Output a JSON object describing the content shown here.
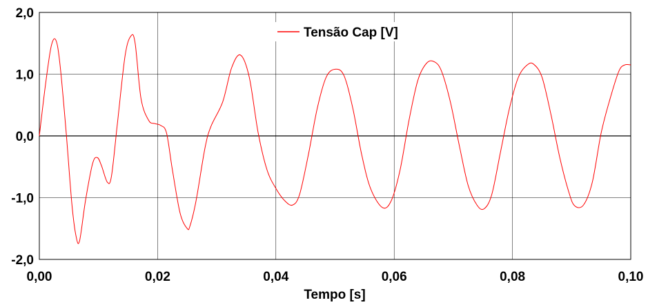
{
  "chart_data": {
    "type": "line",
    "title": "",
    "xlabel": "Tempo [s]",
    "ylabel": "",
    "xlim": [
      0,
      0.1
    ],
    "ylim": [
      -2,
      2
    ],
    "grid": true,
    "legend_position": "top-center",
    "x_ticks": [
      0,
      0.02,
      0.04,
      0.06,
      0.08,
      0.1
    ],
    "x_tick_labels": [
      "0,00",
      "0,02",
      "0,04",
      "0,06",
      "0,08",
      "0,10"
    ],
    "y_ticks": [
      2,
      1,
      0,
      -1,
      -2
    ],
    "y_tick_labels": [
      "2,0",
      "1,0",
      "0,0",
      "-1,0",
      "-2,0"
    ],
    "series": [
      {
        "name": "Tensão Cap [V]",
        "color": "#ff0000",
        "x": [
          0,
          0.001,
          0.002,
          0.0028,
          0.0035,
          0.0045,
          0.0055,
          0.0062,
          0.0068,
          0.0078,
          0.009,
          0.0098,
          0.0105,
          0.0115,
          0.0122,
          0.0132,
          0.0145,
          0.0155,
          0.0162,
          0.0172,
          0.0185,
          0.0195,
          0.0205,
          0.0215,
          0.0225,
          0.0238,
          0.025,
          0.0255,
          0.0265,
          0.028,
          0.029,
          0.031,
          0.0325,
          0.034,
          0.0355,
          0.037,
          0.0385,
          0.04,
          0.0415,
          0.0428,
          0.044,
          0.0455,
          0.047,
          0.0485,
          0.05,
          0.0515,
          0.053,
          0.0545,
          0.056,
          0.058,
          0.0595,
          0.061,
          0.0625,
          0.064,
          0.0655,
          0.0668,
          0.068,
          0.0695,
          0.071,
          0.0725,
          0.074,
          0.0752,
          0.0765,
          0.078,
          0.0795,
          0.081,
          0.0825,
          0.0836,
          0.085,
          0.0865,
          0.088,
          0.0895,
          0.0905,
          0.092,
          0.0935,
          0.095,
          0.0965,
          0.098,
          0.099,
          0.1
        ],
        "values": [
          0,
          0.8,
          1.45,
          1.55,
          1.15,
          0.1,
          -1.1,
          -1.62,
          -1.7,
          -1.05,
          -0.45,
          -0.35,
          -0.48,
          -0.75,
          -0.65,
          0.2,
          1.3,
          1.62,
          1.5,
          0.6,
          0.25,
          0.2,
          0.17,
          0.05,
          -0.55,
          -1.25,
          -1.5,
          -1.45,
          -1.05,
          -0.2,
          0.15,
          0.55,
          1.1,
          1.31,
          0.95,
          0.05,
          -0.55,
          -0.85,
          -1.05,
          -1.12,
          -0.95,
          -0.3,
          0.45,
          0.95,
          1.08,
          0.98,
          0.45,
          -0.3,
          -0.85,
          -1.16,
          -1.05,
          -0.55,
          0.25,
          0.9,
          1.18,
          1.2,
          1.05,
          0.55,
          -0.15,
          -0.8,
          -1.12,
          -1.18,
          -0.95,
          -0.25,
          0.45,
          0.95,
          1.15,
          1.16,
          0.95,
          0.35,
          -0.35,
          -0.9,
          -1.13,
          -1.12,
          -0.75,
          0.05,
          0.6,
          1.05,
          1.15,
          1.15
        ]
      }
    ]
  }
}
